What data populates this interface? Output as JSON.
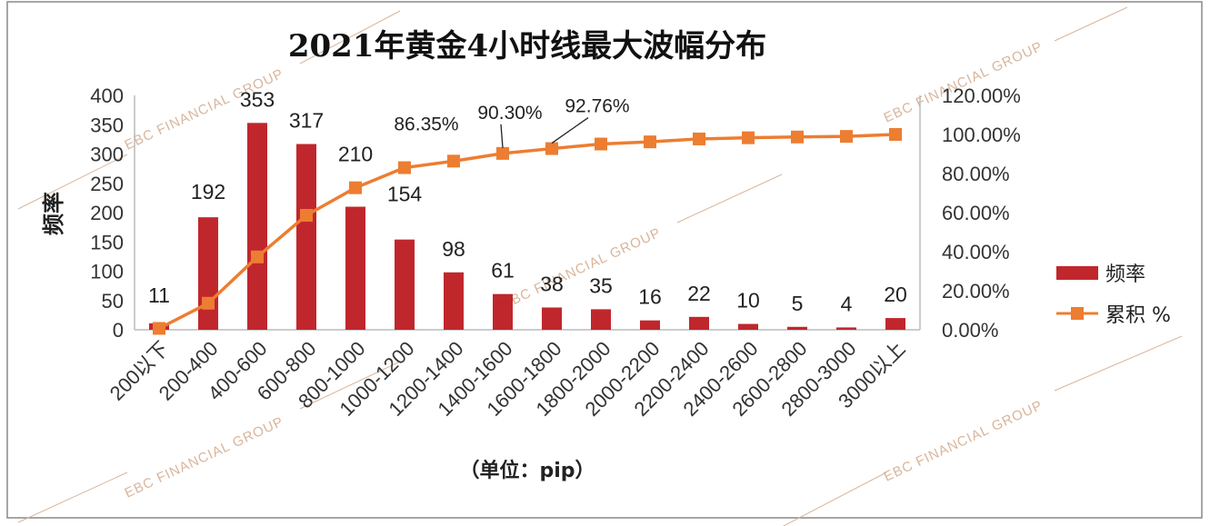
{
  "colors": {
    "bar": "#c0272d",
    "line": "#ed7d31",
    "watermark": "#d9b59b",
    "frame": "#888888"
  },
  "watermark_text": "EBC FINANCIAL GROUP",
  "chart_data": {
    "type": "bar",
    "title": "2021年黄金4小时线最大波幅分布",
    "xlabel": "（单位：pip）",
    "ylabel": "频率",
    "y2label": "",
    "ylim": [
      0,
      400
    ],
    "y2lim": [
      0,
      120
    ],
    "y_ticks": [
      "0",
      "50",
      "100",
      "150",
      "200",
      "250",
      "300",
      "350",
      "400"
    ],
    "y2_ticks": [
      "0.00%",
      "20.00%",
      "40.00%",
      "60.00%",
      "80.00%",
      "100.00%",
      "120.00%"
    ],
    "categories": [
      "200以下",
      "200-400",
      "400-600",
      "600-800",
      "800-1000",
      "1000-1200",
      "1200-1400",
      "1400-1600",
      "1600-1800",
      "1800-2000",
      "2000-2200",
      "2200-2400",
      "2400-2600",
      "2600-2800",
      "2800-3000",
      "3000以上"
    ],
    "grid": false,
    "legend_position": "right",
    "series": [
      {
        "name": "频率",
        "type": "bar",
        "axis": "left",
        "values": [
          11,
          192,
          353,
          317,
          210,
          154,
          98,
          61,
          38,
          35,
          16,
          22,
          10,
          5,
          4,
          20
        ],
        "labels": [
          "11",
          "192",
          "353",
          "317",
          "210",
          "154",
          "98",
          "61",
          "38",
          "35",
          "16",
          "22",
          "10",
          "5",
          "4",
          "20"
        ]
      },
      {
        "name": "累积 %",
        "type": "line",
        "axis": "right",
        "values": [
          0.7,
          13.6,
          37.3,
          58.6,
          72.7,
          83.0,
          86.35,
          90.3,
          92.76,
          95.1,
          96.2,
          97.7,
          98.3,
          98.7,
          99.0,
          100.0
        ],
        "labels": [
          {
            "index": 6,
            "text": "86.35%"
          },
          {
            "index": 7,
            "text": "90.30%"
          },
          {
            "index": 8,
            "text": "92.76%"
          }
        ]
      }
    ]
  }
}
